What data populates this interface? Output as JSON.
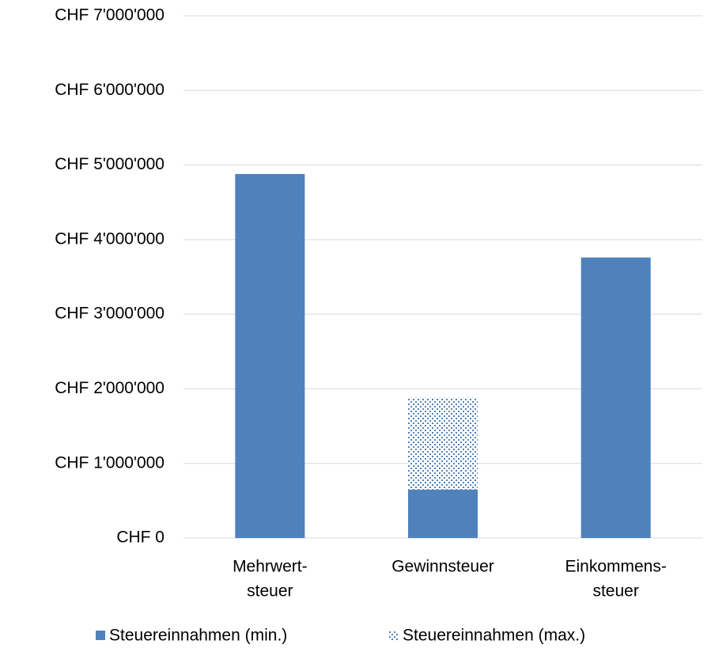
{
  "chart_data": {
    "type": "stacked_bar",
    "categories": [
      [
        "Mehrwert-",
        "steuer"
      ],
      [
        "Gewinnsteuer"
      ],
      [
        "Einkommens-",
        "steuer"
      ]
    ],
    "series": [
      {
        "name": "Steuereinnahmen (min.)",
        "color": "#4f81bd",
        "pattern": "solid",
        "values": [
          4880000,
          650000,
          3760000
        ]
      },
      {
        "name": "Steuereinnahmen (max.)",
        "color": "#4f81bd",
        "pattern": "dots",
        "values": [
          0,
          1230000,
          0
        ]
      }
    ],
    "ylim": [
      0,
      7000000
    ],
    "yticks": [
      {
        "value": 0,
        "label": "CHF 0"
      },
      {
        "value": 1000000,
        "label": "CHF 1'000'000"
      },
      {
        "value": 2000000,
        "label": "CHF 2'000'000"
      },
      {
        "value": 3000000,
        "label": "CHF 3'000'000"
      },
      {
        "value": 4000000,
        "label": "CHF 4'000'000"
      },
      {
        "value": 5000000,
        "label": "CHF 5'000'000"
      },
      {
        "value": 6000000,
        "label": "CHF 6'000'000"
      },
      {
        "value": 7000000,
        "label": "CHF 7'000'000"
      }
    ],
    "grid": true,
    "legend": "bottom"
  }
}
